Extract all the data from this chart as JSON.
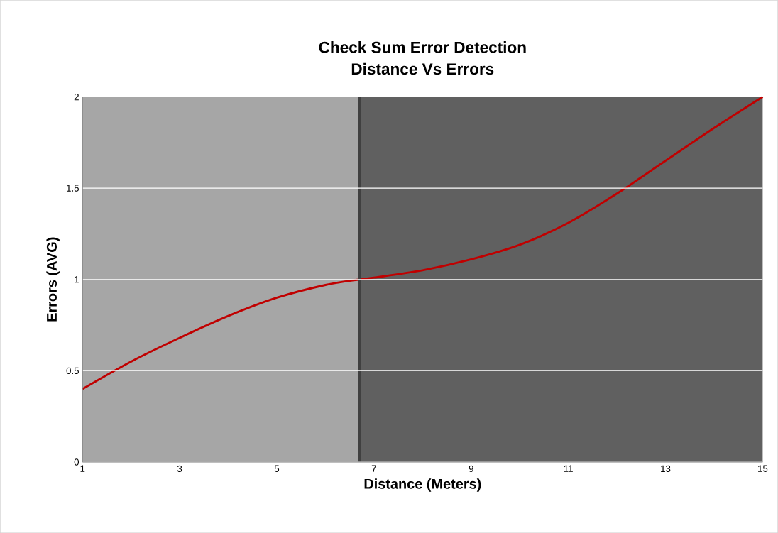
{
  "chart_data": {
    "type": "line",
    "title": "Check Sum Error Detection",
    "subtitle": "Distance Vs Errors",
    "xlabel": "Distance (Meters)",
    "ylabel": "Errors (AVG)",
    "series": [
      {
        "color": "#c00000",
        "x": [
          1,
          2,
          3,
          4,
          5,
          6,
          6.7,
          7,
          8,
          9,
          10,
          11,
          12,
          13,
          14,
          15
        ],
        "values": [
          0.4,
          0.55,
          0.68,
          0.8,
          0.9,
          0.97,
          1.0,
          1.01,
          1.05,
          1.11,
          1.19,
          1.31,
          1.47,
          1.65,
          1.83,
          2.0
        ]
      }
    ],
    "xlim": [
      1,
      15
    ],
    "ylim": [
      0,
      2
    ],
    "xticks": [
      1,
      3,
      5,
      7,
      9,
      11,
      13,
      15
    ],
    "yticks": [
      0,
      0.5,
      1,
      1.5,
      2
    ],
    "grid": "y",
    "marker": "none",
    "line_style": "solid",
    "bands": [
      {
        "axis": "x",
        "from": 1,
        "to": 6.7,
        "color": "#a6a6a6"
      },
      {
        "axis": "x",
        "from": 6.7,
        "to": 15,
        "color": "#606060"
      }
    ],
    "ref_lines": [
      {
        "axis": "x",
        "value": 6.7,
        "color": "#404040"
      }
    ]
  }
}
